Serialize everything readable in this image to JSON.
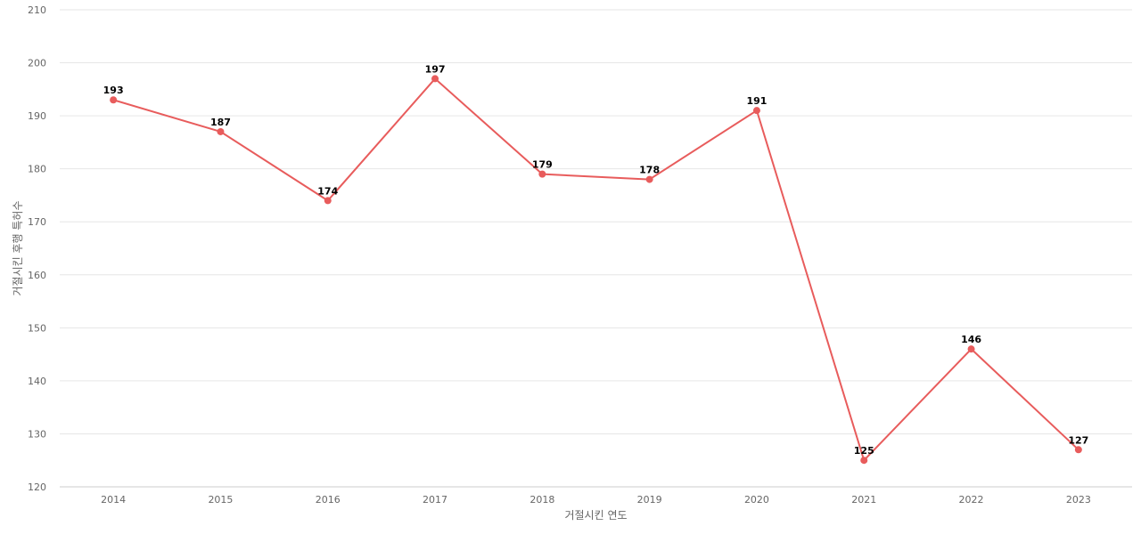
{
  "chart_data": {
    "type": "line",
    "title": "",
    "xlabel": "거절시킨 연도",
    "ylabel": "거절시킨 후행 특허수",
    "categories": [
      "2014",
      "2015",
      "2016",
      "2017",
      "2018",
      "2019",
      "2020",
      "2021",
      "2022",
      "2023"
    ],
    "series": [
      {
        "values": [
          193,
          187,
          174,
          197,
          179,
          178,
          191,
          125,
          146,
          127
        ],
        "color": "#e85c5c"
      }
    ],
    "ylim": [
      120,
      210
    ],
    "yticks": [
      "120",
      "130",
      "140",
      "150",
      "160",
      "170",
      "180",
      "190",
      "200",
      "210"
    ],
    "data_labels": [
      "193",
      "187",
      "174",
      "197",
      "179",
      "178",
      "191",
      "125",
      "146",
      "127"
    ],
    "grid": true,
    "legend": "none"
  }
}
